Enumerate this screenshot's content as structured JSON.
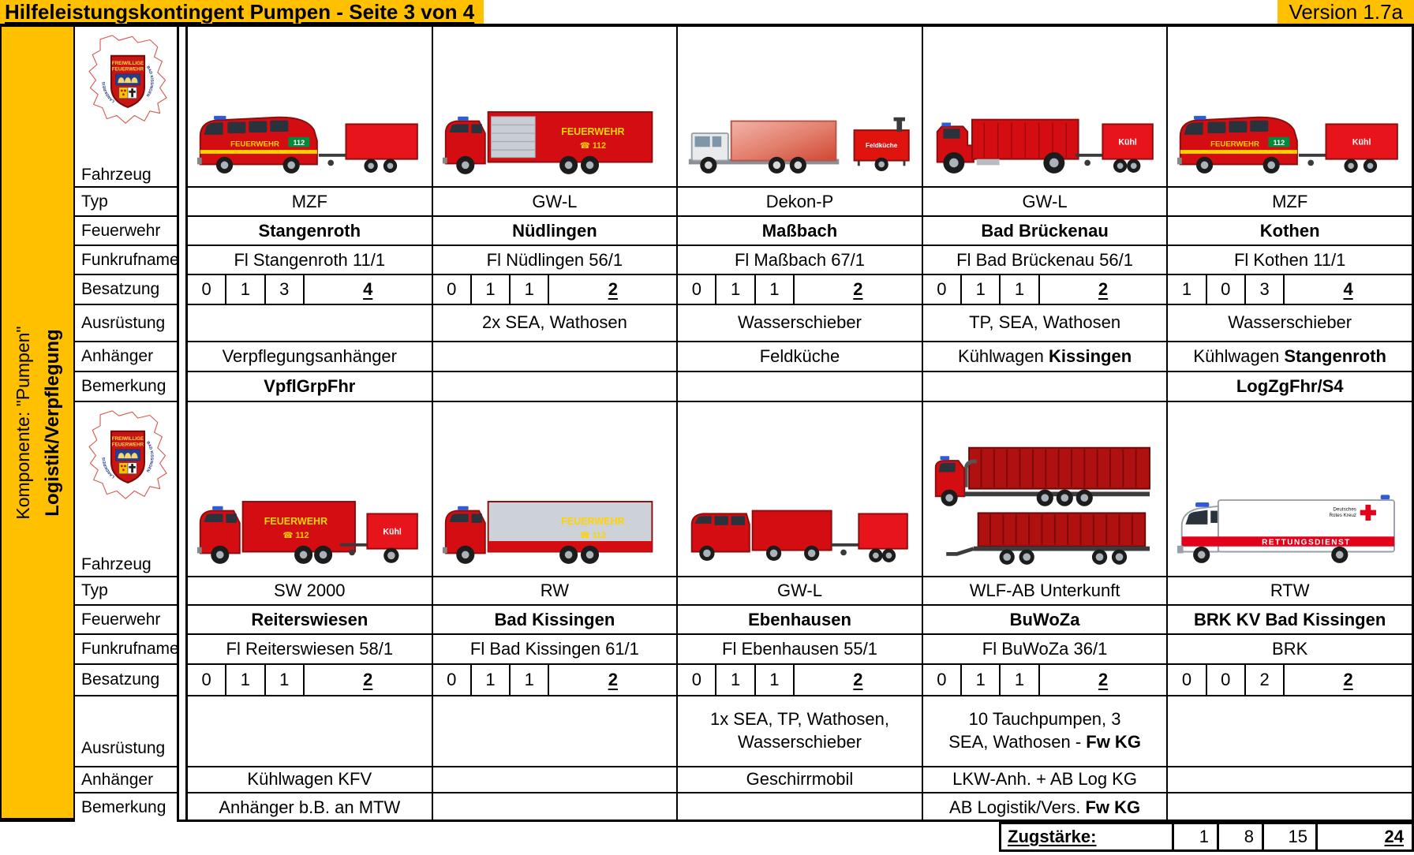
{
  "header": {
    "title": "Hilfeleistungskontingent Pumpen - Seite 3 von 4",
    "version": "Version 1.7a"
  },
  "colors": {
    "accent": "#FFC000",
    "table_border": "#000000",
    "fire_engine_red": "#D40D12",
    "trailer_red": "#E8141C",
    "drk_red": "#E2001A"
  },
  "sidebar": {
    "line1": "Komponente: \"Pumpen\"",
    "line2": "Logistik/Verpflegung"
  },
  "row_labels": {
    "fahrzeug": "Fahrzeug",
    "typ": "Typ",
    "feuerwehr": "Feuerwehr",
    "funkrufname": "Funkrufname",
    "besatzung": "Besatzung",
    "ausruestung": "Ausrüstung",
    "anhaenger": "Anhänger",
    "bemerkung": "Bemerkung"
  },
  "crest": {
    "line1": "FREIWILLIGE",
    "line2": "FEUERWEHR",
    "arc_left": "LANDKREIS",
    "arc_right": "BAD KISSINGEN"
  },
  "vehicle_labels": {
    "feuerwehr": "FEUERWEHR",
    "emergency_call": "☎ 112",
    "emergency_number": "112",
    "kuehl": "Kühl",
    "feldkueche": "Feldküche",
    "rettungsdienst": "RETTUNGSDIENST",
    "drk_line1": "Deutsches",
    "drk_line2": "Rotes Kreuz"
  },
  "blocks": [
    {
      "columns": [
        {
          "vehicle_icon": "mzf-van-with-trailer",
          "typ": "MZF",
          "feuerwehr": "Stangenroth",
          "funkrufname": "Fl Stangenroth 11/1",
          "besatzung": [
            "0",
            "1",
            "3",
            "4"
          ],
          "ausruestung": {
            "text": "",
            "bold": ""
          },
          "anhaenger": {
            "text": "Verpflegungsanhänger",
            "bold": ""
          },
          "bemerkung": {
            "text": "",
            "bold": "VpflGrpFhr"
          }
        },
        {
          "vehicle_icon": "gw-l-box-truck",
          "typ": "GW-L",
          "feuerwehr": "Nüdlingen",
          "funkrufname": "Fl Nüdlingen 56/1",
          "besatzung": [
            "0",
            "1",
            "1",
            "2"
          ],
          "ausruestung": {
            "text": "2x SEA, Wathosen",
            "bold": ""
          },
          "anhaenger": {
            "text": "",
            "bold": ""
          },
          "bemerkung": {
            "text": "",
            "bold": ""
          }
        },
        {
          "vehicle_icon": "dekon-p-truck-with-feldkueche-trailer",
          "typ": "Dekon-P",
          "feuerwehr": "Maßbach",
          "funkrufname": "Fl Maßbach 67/1",
          "besatzung": [
            "0",
            "1",
            "1",
            "2"
          ],
          "ausruestung": {
            "text": "Wasserschieber",
            "bold": ""
          },
          "anhaenger": {
            "text": "Feldküche",
            "bold": ""
          },
          "bemerkung": {
            "text": "",
            "bold": ""
          }
        },
        {
          "vehicle_icon": "gw-l-flatbed-with-kuehl-trailer",
          "typ": "GW-L",
          "feuerwehr": "Bad Brückenau",
          "funkrufname": "Fl Bad Brückenau 56/1",
          "besatzung": [
            "0",
            "1",
            "1",
            "2"
          ],
          "ausruestung": {
            "text": "TP, SEA, Wathosen",
            "bold": ""
          },
          "anhaenger": {
            "text": "Kühlwagen ",
            "bold": "Kissingen"
          },
          "bemerkung": {
            "text": "",
            "bold": ""
          }
        },
        {
          "vehicle_icon": "mzf-van-with-kuehl-trailer",
          "typ": "MZF",
          "feuerwehr": "Kothen",
          "funkrufname": "Fl Kothen 11/1",
          "besatzung": [
            "1",
            "0",
            "3",
            "4"
          ],
          "ausruestung": {
            "text": "Wasserschieber",
            "bold": ""
          },
          "anhaenger": {
            "text": "Kühlwagen ",
            "bold": "Stangenroth"
          },
          "bemerkung": {
            "text": "",
            "bold": "LogZgFhr/S4"
          }
        }
      ]
    },
    {
      "columns": [
        {
          "vehicle_icon": "sw2000-truck-with-kuehl-trailer",
          "typ": "SW 2000",
          "feuerwehr": "Reiterswiesen",
          "funkrufname": "Fl Reiterswiesen 58/1",
          "besatzung": [
            "0",
            "1",
            "1",
            "2"
          ],
          "ausruestung": {
            "text": "",
            "bold": ""
          },
          "anhaenger": {
            "text": "Kühlwagen KFV",
            "bold": ""
          },
          "bemerkung": {
            "text": "Anhänger b.B. an MTW",
            "bold": ""
          }
        },
        {
          "vehicle_icon": "rw-truck",
          "typ": "RW",
          "feuerwehr": "Bad Kissingen",
          "funkrufname": "Fl Bad Kissingen 61/1",
          "besatzung": [
            "0",
            "1",
            "1",
            "2"
          ],
          "ausruestung": {
            "text": "",
            "bold": ""
          },
          "anhaenger": {
            "text": "",
            "bold": ""
          },
          "bemerkung": {
            "text": "",
            "bold": ""
          }
        },
        {
          "vehicle_icon": "gw-l-doka-with-trailer",
          "typ": "GW-L",
          "feuerwehr": "Ebenhausen",
          "funkrufname": "Fl Ebenhausen 55/1",
          "besatzung": [
            "0",
            "1",
            "1",
            "2"
          ],
          "ausruestung": {
            "text": "1x SEA, TP, Wathosen,\nWasserschieber",
            "bold": ""
          },
          "anhaenger": {
            "text": "Geschirrmobil",
            "bold": ""
          },
          "bemerkung": {
            "text": "",
            "bold": ""
          }
        },
        {
          "vehicle_icon": "wlf-ab-with-container-trailer",
          "typ": "WLF-AB Unterkunft",
          "feuerwehr": "BuWoZa",
          "funkrufname": "Fl BuWoZa 36/1",
          "besatzung": [
            "0",
            "1",
            "1",
            "2"
          ],
          "ausruestung": {
            "text": "10 Tauchpumpen, 3\nSEA, Wathosen - ",
            "bold": "Fw KG"
          },
          "anhaenger": {
            "text": "LKW-Anh. + AB Log KG",
            "bold": ""
          },
          "bemerkung": {
            "text": "AB Logistik/Vers. ",
            "bold": "Fw KG"
          }
        },
        {
          "vehicle_icon": "rtw-ambulance",
          "typ": "RTW",
          "feuerwehr": "BRK KV Bad Kissingen",
          "funkrufname": "BRK",
          "besatzung": [
            "0",
            "0",
            "2",
            "2"
          ],
          "ausruestung": {
            "text": "",
            "bold": ""
          },
          "anhaenger": {
            "text": "",
            "bold": ""
          },
          "bemerkung": {
            "text": "",
            "bold": ""
          }
        }
      ]
    }
  ],
  "footer": {
    "label": "Zugstärke:",
    "values": [
      "1",
      "8",
      "15"
    ],
    "total": "24"
  }
}
